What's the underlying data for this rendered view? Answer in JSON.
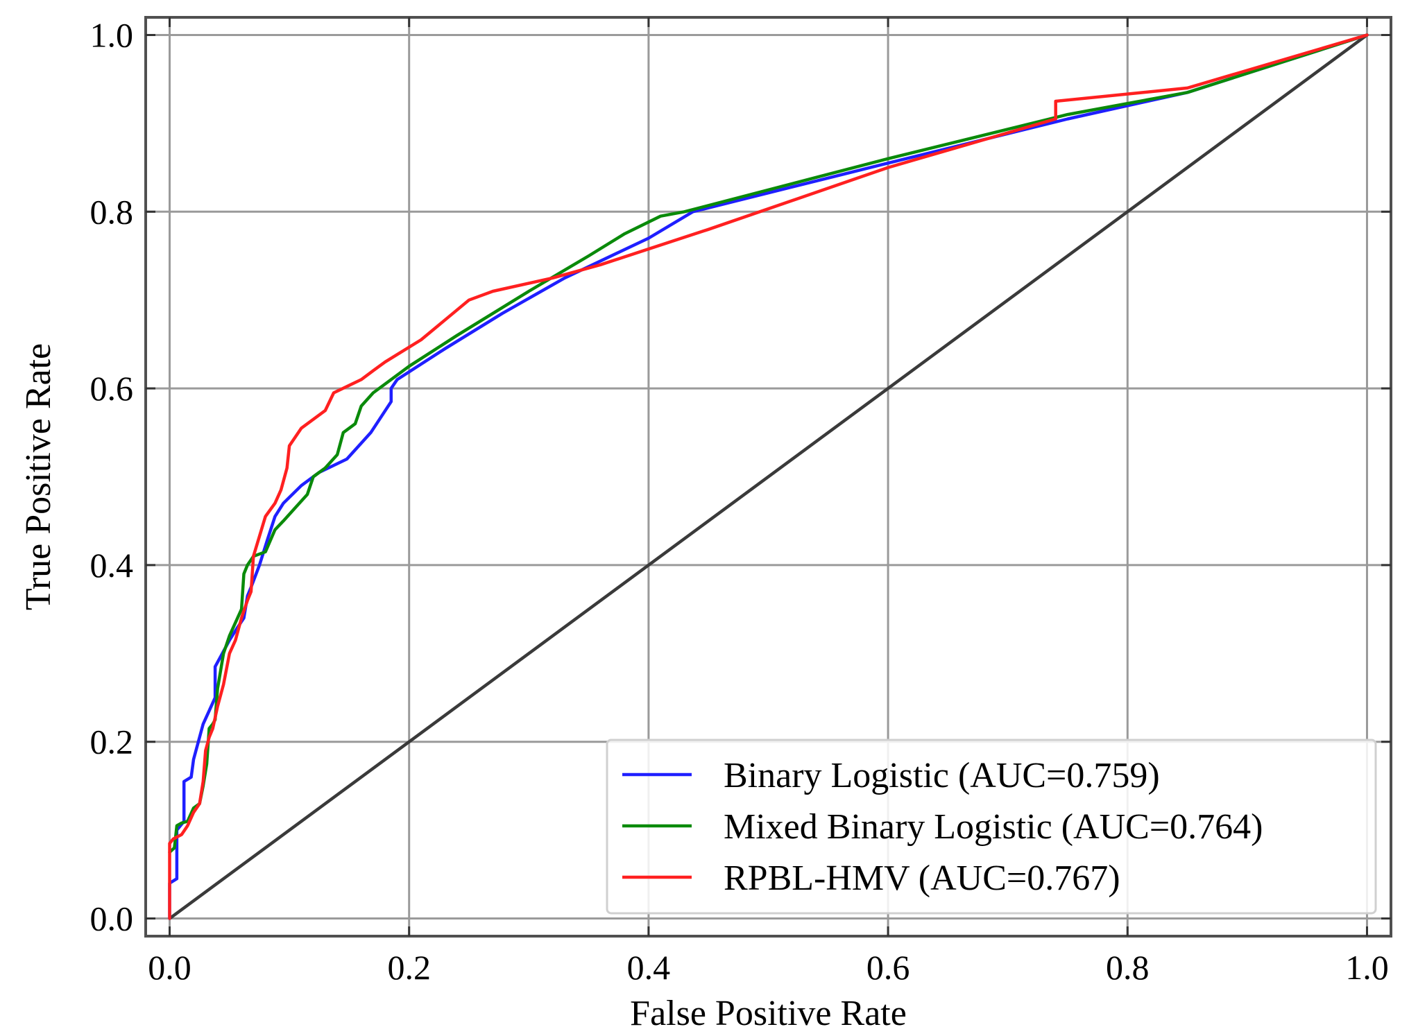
{
  "chart_data": {
    "type": "line",
    "title": "",
    "xlabel": "False Positive Rate",
    "ylabel": "True Positive Rate",
    "xlim": [
      -0.02,
      1.02
    ],
    "ylim": [
      -0.02,
      1.02
    ],
    "xticks": [
      {
        "value": 0.0,
        "label": "0.0"
      },
      {
        "value": 0.2,
        "label": "0.2"
      },
      {
        "value": 0.4,
        "label": "0.4"
      },
      {
        "value": 0.6,
        "label": "0.6"
      },
      {
        "value": 0.8,
        "label": "0.8"
      },
      {
        "value": 1.0,
        "label": "1.0"
      }
    ],
    "yticks": [
      {
        "value": 0.0,
        "label": "0.0"
      },
      {
        "value": 0.2,
        "label": "0.2"
      },
      {
        "value": 0.4,
        "label": "0.4"
      },
      {
        "value": 0.6,
        "label": "0.6"
      },
      {
        "value": 0.8,
        "label": "0.8"
      },
      {
        "value": 1.0,
        "label": "1.0"
      }
    ],
    "grid": true,
    "legend_position": "bottom-right",
    "reference_line": {
      "name": "chance-diagonal",
      "color": "#3a3a3a",
      "x": [
        0,
        1
      ],
      "y": [
        0,
        1
      ]
    },
    "series": [
      {
        "name": "Binary Logistic (AUC=0.759)",
        "color": "#1f1fff",
        "x": [
          0.0,
          0.0,
          0.006,
          0.006,
          0.012,
          0.012,
          0.018,
          0.02,
          0.024,
          0.028,
          0.033,
          0.038,
          0.038,
          0.044,
          0.05,
          0.057,
          0.062,
          0.065,
          0.068,
          0.075,
          0.082,
          0.088,
          0.095,
          0.11,
          0.125,
          0.148,
          0.168,
          0.185,
          0.185,
          0.19,
          0.23,
          0.278,
          0.33,
          0.4,
          0.437,
          0.6,
          0.75,
          0.85,
          1.0
        ],
        "y": [
          0.0,
          0.04,
          0.045,
          0.1,
          0.11,
          0.155,
          0.16,
          0.18,
          0.2,
          0.22,
          0.235,
          0.25,
          0.285,
          0.3,
          0.315,
          0.33,
          0.34,
          0.365,
          0.375,
          0.4,
          0.43,
          0.455,
          0.47,
          0.49,
          0.505,
          0.52,
          0.55,
          0.585,
          0.6,
          0.61,
          0.645,
          0.685,
          0.725,
          0.77,
          0.8,
          0.855,
          0.905,
          0.935,
          1.0
        ]
      },
      {
        "name": "Mixed Binary Logistic (AUC=0.764)",
        "color": "#0a8a0a",
        "x": [
          0.0,
          0.004,
          0.006,
          0.01,
          0.015,
          0.02,
          0.025,
          0.028,
          0.031,
          0.033,
          0.036,
          0.038,
          0.04,
          0.045,
          0.05,
          0.06,
          0.062,
          0.065,
          0.07,
          0.08,
          0.088,
          0.095,
          0.105,
          0.115,
          0.12,
          0.13,
          0.14,
          0.145,
          0.155,
          0.16,
          0.17,
          0.2,
          0.24,
          0.3,
          0.35,
          0.38,
          0.41,
          0.43,
          0.6,
          0.75,
          0.85,
          1.0
        ],
        "y": [
          0.075,
          0.08,
          0.105,
          0.108,
          0.11,
          0.125,
          0.13,
          0.15,
          0.175,
          0.215,
          0.22,
          0.225,
          0.26,
          0.3,
          0.32,
          0.35,
          0.39,
          0.4,
          0.41,
          0.415,
          0.44,
          0.45,
          0.465,
          0.48,
          0.5,
          0.51,
          0.525,
          0.55,
          0.56,
          0.58,
          0.595,
          0.625,
          0.66,
          0.71,
          0.75,
          0.775,
          0.795,
          0.8,
          0.86,
          0.91,
          0.935,
          1.0
        ]
      },
      {
        "name": "RPBL-HMV (AUC=0.767)",
        "color": "#ff2020",
        "x": [
          0.0,
          0.0,
          0.003,
          0.01,
          0.015,
          0.02,
          0.025,
          0.028,
          0.03,
          0.033,
          0.036,
          0.04,
          0.045,
          0.05,
          0.055,
          0.06,
          0.065,
          0.068,
          0.07,
          0.08,
          0.088,
          0.093,
          0.098,
          0.1,
          0.11,
          0.13,
          0.137,
          0.16,
          0.17,
          0.175,
          0.18,
          0.21,
          0.25,
          0.27,
          0.32,
          0.36,
          0.45,
          0.6,
          0.74,
          0.74,
          0.85,
          1.0
        ],
        "y": [
          0.0,
          0.085,
          0.09,
          0.095,
          0.105,
          0.12,
          0.13,
          0.155,
          0.19,
          0.205,
          0.215,
          0.24,
          0.265,
          0.3,
          0.315,
          0.34,
          0.36,
          0.37,
          0.41,
          0.455,
          0.47,
          0.485,
          0.51,
          0.535,
          0.555,
          0.575,
          0.595,
          0.61,
          0.62,
          0.625,
          0.63,
          0.655,
          0.7,
          0.71,
          0.725,
          0.74,
          0.78,
          0.85,
          0.905,
          0.925,
          0.94,
          1.0
        ]
      }
    ]
  }
}
